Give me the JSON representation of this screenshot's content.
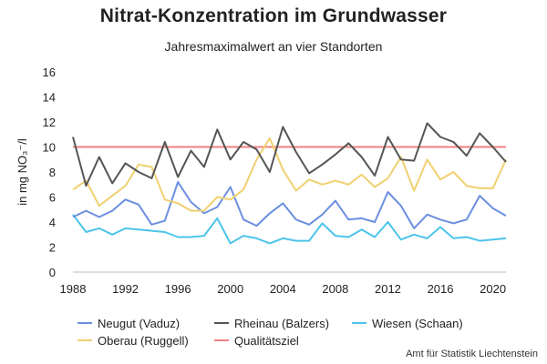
{
  "chart_data": {
    "type": "line",
    "title": "Nitrat-Konzentration im Grundwasser",
    "subtitle": "Jahresmaximalwert an vier Standorten",
    "ylabel": "in mg NO₃⁻/l",
    "xlabel": "",
    "ylim": [
      0,
      16
    ],
    "yticks": [
      0,
      2,
      4,
      6,
      8,
      10,
      12,
      14,
      16
    ],
    "xlim": [
      1988,
      2021
    ],
    "xticks": [
      1988,
      1992,
      1996,
      2000,
      2004,
      2008,
      2012,
      2016,
      2020
    ],
    "grid": false,
    "legend_position": "bottom",
    "x": [
      1988,
      1989,
      1990,
      1991,
      1992,
      1993,
      1994,
      1995,
      1996,
      1997,
      1998,
      1999,
      2000,
      2001,
      2002,
      2003,
      2004,
      2005,
      2006,
      2007,
      2008,
      2009,
      2010,
      2011,
      2012,
      2013,
      2014,
      2015,
      2016,
      2017,
      2018,
      2019,
      2020,
      2021
    ],
    "series": [
      {
        "name": "Neugut (Vaduz)",
        "color": "#6b8fe0",
        "values": [
          4.4,
          4.9,
          4.4,
          4.9,
          5.8,
          5.4,
          3.8,
          4.1,
          7.2,
          5.6,
          4.7,
          5.2,
          6.8,
          4.2,
          3.7,
          4.7,
          5.5,
          4.2,
          3.8,
          4.6,
          5.7,
          4.2,
          4.3,
          4.0,
          6.4,
          5.3,
          3.5,
          4.6,
          4.2,
          3.9,
          4.2,
          6.1,
          5.1,
          4.5
        ]
      },
      {
        "name": "Rheinau (Balzers)",
        "color": "#555555",
        "values": [
          10.8,
          6.9,
          9.2,
          7.1,
          8.7,
          8.0,
          7.5,
          10.4,
          7.6,
          9.7,
          8.4,
          11.4,
          9.0,
          10.4,
          9.8,
          8.0,
          11.6,
          9.6,
          7.9,
          8.6,
          9.4,
          10.3,
          9.2,
          7.7,
          10.8,
          9.0,
          8.9,
          11.9,
          10.8,
          10.4,
          9.3,
          11.1,
          10.0,
          8.8
        ]
      },
      {
        "name": "Wiesen (Schaan)",
        "color": "#4cc4ea",
        "values": [
          4.6,
          3.2,
          3.5,
          3.0,
          3.5,
          3.4,
          3.3,
          3.2,
          2.8,
          2.8,
          2.9,
          4.3,
          2.3,
          2.9,
          2.7,
          2.3,
          2.7,
          2.5,
          2.5,
          3.9,
          2.9,
          2.8,
          3.4,
          2.8,
          4.0,
          2.6,
          3.0,
          2.7,
          3.6,
          2.7,
          2.8,
          2.5,
          2.6,
          2.7
        ]
      },
      {
        "name": "Oberau (Ruggell)",
        "color": "#f0d070",
        "values": [
          6.6,
          7.3,
          5.3,
          6.1,
          6.9,
          8.6,
          8.4,
          5.8,
          5.5,
          4.9,
          4.9,
          6.0,
          5.8,
          6.6,
          9.0,
          10.7,
          8.2,
          6.5,
          7.4,
          7.0,
          7.3,
          7.0,
          7.8,
          6.8,
          7.5,
          9.2,
          6.5,
          9.0,
          7.4,
          8.0,
          6.9,
          6.7,
          6.7,
          9.0
        ]
      },
      {
        "name": "Qualitätsziel",
        "color": "#f08080",
        "values": [
          10,
          10,
          10,
          10,
          10,
          10,
          10,
          10,
          10,
          10,
          10,
          10,
          10,
          10,
          10,
          10,
          10,
          10,
          10,
          10,
          10,
          10,
          10,
          10,
          10,
          10,
          10,
          10,
          10,
          10,
          10,
          10,
          10,
          10
        ]
      }
    ],
    "legend": [
      {
        "label": "Neugut (Vaduz)",
        "color": "#6b8fe0"
      },
      {
        "label": "Rheinau (Balzers)",
        "color": "#555555"
      },
      {
        "label": "Wiesen (Schaan)",
        "color": "#4cc4ea"
      },
      {
        "label": "Oberau (Ruggell)",
        "color": "#f0d070"
      },
      {
        "label": "Qualitätsziel",
        "color": "#f08080"
      }
    ],
    "source": "Amt für Statistik Liechtenstein"
  }
}
